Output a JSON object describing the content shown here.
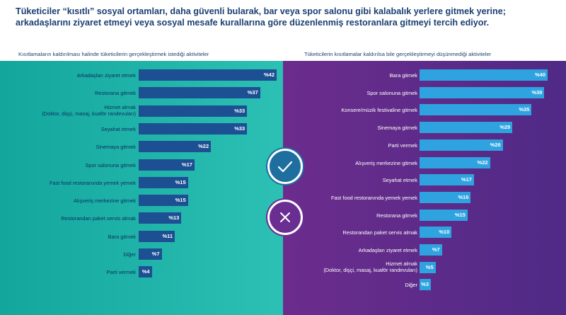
{
  "headline": {
    "line1": "Tüketiciler “kısıtlı” sosyal ortamları, daha güvenli bularak, bar veya spor salonu gibi kalabalık yerlere gitmek yerine;",
    "line2": "arkadaşlarını ziyaret etmeyi veya sosyal mesafe kurallarına göre düzenlenmiş restoranlara gitmeyi tercih ediyor."
  },
  "colors": {
    "left_panel": "#12a69d",
    "right_panel": "#6c2c8d",
    "left_bar": "#1d4f93",
    "right_bar": "#2ea3e0",
    "title_text": "#1b3f73"
  },
  "icons": {
    "left_badge": "check-icon",
    "right_badge": "cross-icon"
  },
  "chart_data": [
    {
      "type": "bar",
      "orientation": "horizontal",
      "title": "Kısıtlamaların kaldırılması halinde tüketicilerin gerçekleştirmek istediği aktiviteler",
      "value_prefix": "%",
      "xlim": [
        0,
        42
      ],
      "categories": [
        "Arkadaşları ziyaret etmek",
        "Restorana gitmek",
        [
          "Hizmet almak",
          "(Doktor, dişçi, masaj, kuaför randevuları)"
        ],
        "Seyahat etmek",
        "Sinemaya gitmek",
        "Spor salonuna gitmek",
        "Fast food restoranında yemek yemek",
        "Alışveriş merkezine gitmek",
        "Restorandan paket servis almak",
        "Bara gitmek",
        "Diğer",
        "Parti vermek"
      ],
      "values": [
        42,
        37,
        33,
        33,
        22,
        17,
        15,
        15,
        13,
        11,
        7,
        4
      ]
    },
    {
      "type": "bar",
      "orientation": "horizontal",
      "title": "Tüketicilerin kısıtlamalar kaldırılsa bile gerçekleştirmeyi düşünmediği aktiviteler",
      "value_prefix": "%",
      "xlim": [
        0,
        40
      ],
      "categories": [
        "Bara gitmek",
        "Spor salonuna gitmek",
        "Konsere/müzik festivaline gitmek",
        "Sinemaya gitmek",
        "Parti vermek",
        "Alışveriş merkezine gitmek",
        "Seyahat etmek",
        "Fast food restoranında yemek yemek",
        "Restorana gitmek",
        "Restorandan paket servis almak",
        "Arkadaşları ziyaret etmek",
        [
          "Hizmet almak",
          "(Doktor, dişçi, masaj, kuaför randevuları)"
        ],
        "Diğer"
      ],
      "values": [
        40,
        39,
        35,
        29,
        26,
        22,
        17,
        16,
        15,
        10,
        7,
        5,
        3
      ]
    }
  ]
}
